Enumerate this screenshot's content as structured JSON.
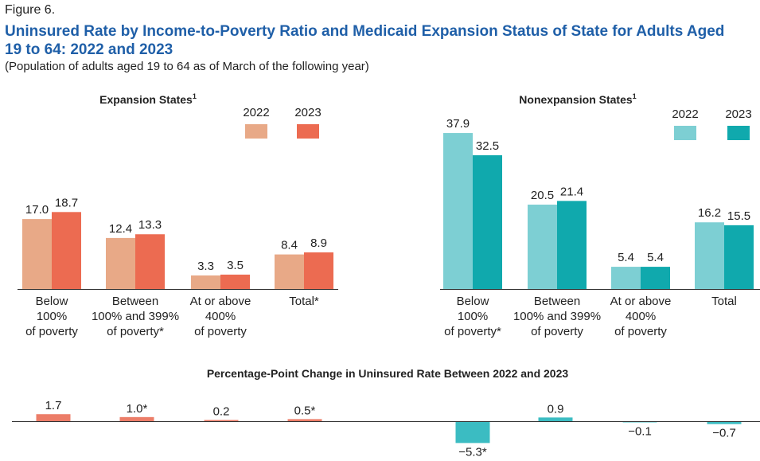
{
  "figure_label": "Figure 6.",
  "title": "Uninsured Rate by Income-to-Poverty Ratio and Medicaid Expansion Status of State for Adults Aged 19 to 64: 2022 and 2023",
  "subtitle": "(Population of adults aged 19 to 64 as of March of the following year)",
  "colors": {
    "exp_2022": "#e8a987",
    "exp_2023": "#ec6b51",
    "non_2022": "#7dcfd3",
    "non_2023": "#10a9ad",
    "change_exp": "#ec7d68",
    "change_non": "#3bbcc2"
  },
  "chart_data": [
    {
      "type": "bar",
      "panel": "expansion",
      "title": "Expansion States",
      "title_superscript": "1",
      "categories": [
        "Below\n100%\nof poverty",
        "Between\n100% and 399%\nof poverty*",
        "At or above\n400%\nof poverty",
        "Total*"
      ],
      "series": [
        {
          "name": "2022",
          "values": [
            17.0,
            12.4,
            3.3,
            8.4
          ],
          "labels": [
            "17.0",
            "12.4",
            "3.3",
            "8.4"
          ]
        },
        {
          "name": "2023",
          "values": [
            18.7,
            13.3,
            3.5,
            8.9
          ],
          "labels": [
            "18.7",
            "13.3",
            "3.5",
            "8.9"
          ]
        }
      ],
      "ylim": [
        0,
        40
      ]
    },
    {
      "type": "bar",
      "panel": "nonexpansion",
      "title": "Nonexpansion States",
      "title_superscript": "1",
      "categories": [
        "Below\n100%\nof poverty*",
        "Between\n100% and 399%\nof poverty",
        "At or above\n400%\nof poverty",
        "Total"
      ],
      "series": [
        {
          "name": "2022",
          "values": [
            37.9,
            20.5,
            5.4,
            16.2
          ],
          "labels": [
            "37.9",
            "20.5",
            "5.4",
            "16.2"
          ]
        },
        {
          "name": "2023",
          "values": [
            32.5,
            21.4,
            5.4,
            15.5
          ],
          "labels": [
            "32.5",
            "21.4",
            "5.4",
            "15.5"
          ]
        }
      ],
      "ylim": [
        0,
        40
      ]
    },
    {
      "type": "bar",
      "panel": "change",
      "title": "Percentage-Point Change in Uninsured Rate Between 2022 and 2023",
      "categories": [
        "Expansion: Below 100% of poverty",
        "Expansion: Between 100% and 399% of poverty",
        "Expansion: At or above 400% of poverty",
        "Expansion: Total",
        "Nonexpansion: Below 100% of poverty",
        "Nonexpansion: Between 100% and 399% of poverty",
        "Nonexpansion: At or above 400% of poverty",
        "Nonexpansion: Total"
      ],
      "values": [
        1.7,
        1.0,
        0.2,
        0.5,
        -5.3,
        0.9,
        -0.1,
        -0.7
      ],
      "labels": [
        "1.7",
        "1.0*",
        "0.2",
        "0.5*",
        "−5.3*",
        "0.9",
        "−0.1",
        "−0.7"
      ]
    }
  ]
}
